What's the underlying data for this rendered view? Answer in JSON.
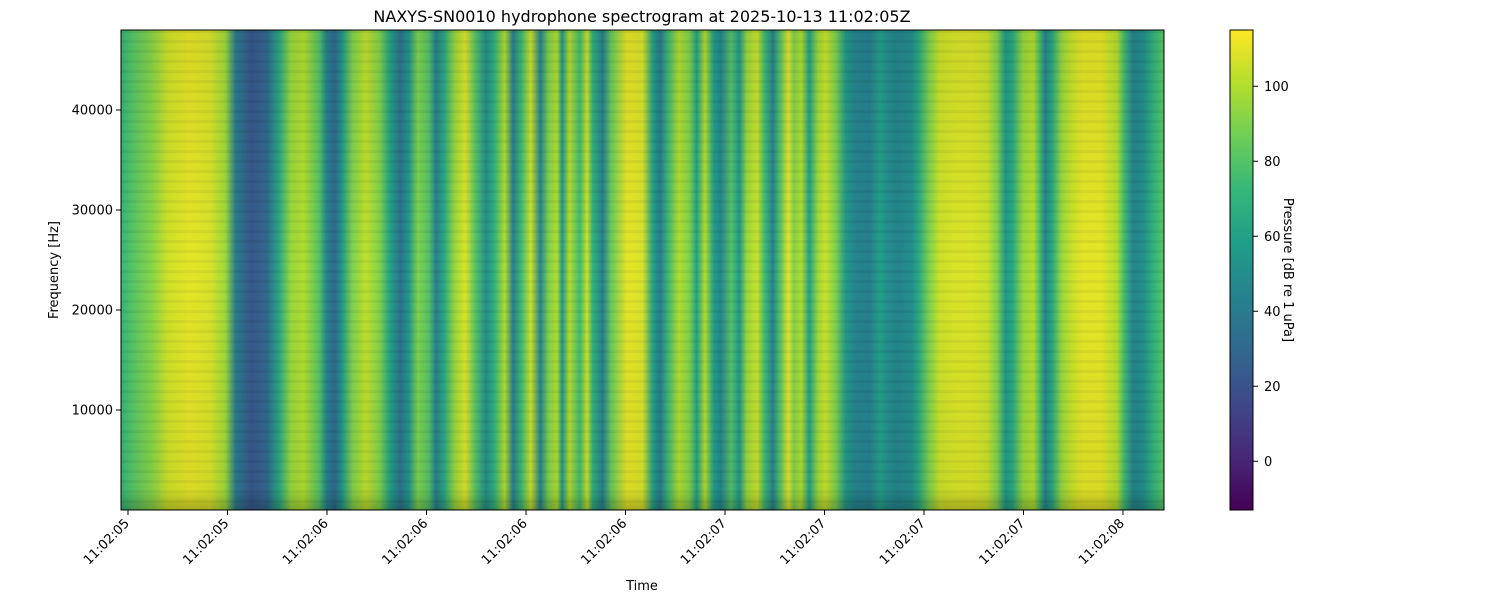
{
  "chart_data": {
    "type": "heatmap",
    "title": "NAXYS-SN0010 hydrophone spectrogram at 2025-10-13 11:02:05Z",
    "xlabel": "Time",
    "ylabel": "Frequency [Hz]",
    "x_ticks": [
      "11:02:05",
      "11:02:05",
      "11:02:06",
      "11:02:06",
      "11:02:06",
      "11:02:06",
      "11:02:07",
      "11:02:07",
      "11:02:07",
      "11:02:07",
      "11:02:08"
    ],
    "y_ticks": [
      10000,
      20000,
      30000,
      40000
    ],
    "y_tick_labels": [
      "10000",
      "20000",
      "30000",
      "40000"
    ],
    "ylim": [
      0,
      48000
    ],
    "colormap": "viridis",
    "colorbar": {
      "label": "Pressure [dB re 1 uPa]",
      "ticks": [
        0,
        20,
        40,
        60,
        80,
        100
      ],
      "tick_labels": [
        "0",
        "20",
        "40",
        "60",
        "80",
        "100"
      ],
      "range": [
        -13,
        115
      ]
    },
    "time_profile": [
      {
        "t": 0.0,
        "db": 72
      },
      {
        "t": 0.013,
        "db": 82
      },
      {
        "t": 0.03,
        "db": 92
      },
      {
        "t": 0.045,
        "db": 106
      },
      {
        "t": 0.065,
        "db": 110
      },
      {
        "t": 0.085,
        "db": 108
      },
      {
        "t": 0.1,
        "db": 96
      },
      {
        "t": 0.11,
        "db": 40
      },
      {
        "t": 0.125,
        "db": 22
      },
      {
        "t": 0.14,
        "db": 30
      },
      {
        "t": 0.152,
        "db": 65
      },
      {
        "t": 0.163,
        "db": 95
      },
      {
        "t": 0.175,
        "db": 100
      },
      {
        "t": 0.19,
        "db": 80
      },
      {
        "t": 0.197,
        "db": 45
      },
      {
        "t": 0.205,
        "db": 30
      },
      {
        "t": 0.212,
        "db": 55
      },
      {
        "t": 0.222,
        "db": 90
      },
      {
        "t": 0.235,
        "db": 103
      },
      {
        "t": 0.248,
        "db": 90
      },
      {
        "t": 0.258,
        "db": 60
      },
      {
        "t": 0.268,
        "db": 35
      },
      {
        "t": 0.276,
        "db": 55
      },
      {
        "t": 0.285,
        "db": 90
      },
      {
        "t": 0.295,
        "db": 80
      },
      {
        "t": 0.302,
        "db": 42
      },
      {
        "t": 0.31,
        "db": 65
      },
      {
        "t": 0.32,
        "db": 95
      },
      {
        "t": 0.33,
        "db": 108
      },
      {
        "t": 0.34,
        "db": 80
      },
      {
        "t": 0.35,
        "db": 50
      },
      {
        "t": 0.358,
        "db": 70
      },
      {
        "t": 0.368,
        "db": 100
      },
      {
        "t": 0.376,
        "db": 42
      },
      {
        "t": 0.384,
        "db": 75
      },
      {
        "t": 0.393,
        "db": 105
      },
      {
        "t": 0.402,
        "db": 45
      },
      {
        "t": 0.41,
        "db": 90
      },
      {
        "t": 0.418,
        "db": 100
      },
      {
        "t": 0.423,
        "db": 55
      },
      {
        "t": 0.43,
        "db": 100
      },
      {
        "t": 0.44,
        "db": 75
      },
      {
        "t": 0.447,
        "db": 105
      },
      {
        "t": 0.452,
        "db": 70
      },
      {
        "t": 0.462,
        "db": 42
      },
      {
        "t": 0.47,
        "db": 85
      },
      {
        "t": 0.485,
        "db": 110
      },
      {
        "t": 0.5,
        "db": 108
      },
      {
        "t": 0.51,
        "db": 60
      },
      {
        "t": 0.517,
        "db": 40
      },
      {
        "t": 0.525,
        "db": 75
      },
      {
        "t": 0.535,
        "db": 100
      },
      {
        "t": 0.545,
        "db": 90
      },
      {
        "t": 0.552,
        "db": 60
      },
      {
        "t": 0.56,
        "db": 100
      },
      {
        "t": 0.568,
        "db": 60
      },
      {
        "t": 0.575,
        "db": 45
      },
      {
        "t": 0.585,
        "db": 80
      },
      {
        "t": 0.593,
        "db": 55
      },
      {
        "t": 0.6,
        "db": 95
      },
      {
        "t": 0.61,
        "db": 105
      },
      {
        "t": 0.617,
        "db": 75
      },
      {
        "t": 0.625,
        "db": 45
      },
      {
        "t": 0.632,
        "db": 80
      },
      {
        "t": 0.64,
        "db": 110
      },
      {
        "t": 0.645,
        "db": 90
      },
      {
        "t": 0.652,
        "db": 100
      },
      {
        "t": 0.66,
        "db": 60
      },
      {
        "t": 0.668,
        "db": 95
      },
      {
        "t": 0.675,
        "db": 105
      },
      {
        "t": 0.685,
        "db": 90
      },
      {
        "t": 0.695,
        "db": 55
      },
      {
        "t": 0.705,
        "db": 45
      },
      {
        "t": 0.718,
        "db": 42
      },
      {
        "t": 0.728,
        "db": 60
      },
      {
        "t": 0.735,
        "db": 50
      },
      {
        "t": 0.745,
        "db": 45
      },
      {
        "t": 0.758,
        "db": 50
      },
      {
        "t": 0.765,
        "db": 65
      },
      {
        "t": 0.775,
        "db": 90
      },
      {
        "t": 0.785,
        "db": 105
      },
      {
        "t": 0.8,
        "db": 108
      },
      {
        "t": 0.815,
        "db": 108
      },
      {
        "t": 0.83,
        "db": 105
      },
      {
        "t": 0.84,
        "db": 90
      },
      {
        "t": 0.848,
        "db": 55
      },
      {
        "t": 0.855,
        "db": 65
      },
      {
        "t": 0.865,
        "db": 95
      },
      {
        "t": 0.875,
        "db": 100
      },
      {
        "t": 0.88,
        "db": 80
      },
      {
        "t": 0.886,
        "db": 45
      },
      {
        "t": 0.893,
        "db": 65
      },
      {
        "t": 0.902,
        "db": 95
      },
      {
        "t": 0.912,
        "db": 105
      },
      {
        "t": 0.922,
        "db": 110
      },
      {
        "t": 0.94,
        "db": 110
      },
      {
        "t": 0.955,
        "db": 100
      },
      {
        "t": 0.962,
        "db": 75
      },
      {
        "t": 0.97,
        "db": 45
      },
      {
        "t": 0.98,
        "db": 50
      },
      {
        "t": 0.99,
        "db": 70
      },
      {
        "t": 1.0,
        "db": 82
      }
    ]
  }
}
